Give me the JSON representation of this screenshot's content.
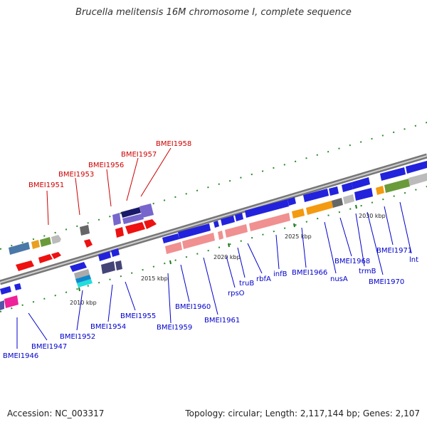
{
  "title": "Brucella melitensis 16M chromosome I, complete sequence",
  "footer": {
    "accession": "Accession: NC_003317",
    "summary": "Topology: circular; Length: 2,117,144 bp; Genes: 2,107"
  },
  "colors": {
    "label_red": "#cc0000",
    "label_blue": "#0000cc",
    "backbone": "#888888",
    "tick_green": "#1a7a1a"
  },
  "ruler_labels": [
    "2010 kbp",
    "2015 kbp",
    "2020 kbp",
    "2025 kbp",
    "2030 kbp"
  ],
  "labels_top": [
    "BMEI1951",
    "BMEI1953",
    "BMEI1956",
    "BMEI1957",
    "BMEI1958"
  ],
  "labels_bottom": [
    "BMEI1946",
    "BMEI1947",
    "BMEI1952",
    "BMEI1954",
    "BMEI1955",
    "BMEI1959",
    "BMEI1960",
    "BMEI1961",
    "rpsO",
    "truB",
    "rbfA",
    "infB",
    "BMEI1966",
    "nusA",
    "BMEI1968",
    "trmB",
    "BMEI1970",
    "BMEI1971",
    "lnt"
  ]
}
